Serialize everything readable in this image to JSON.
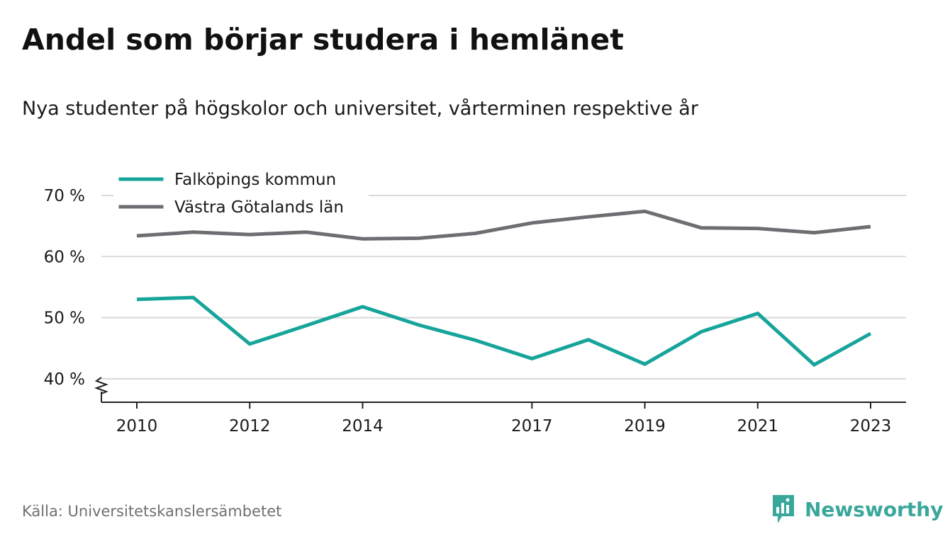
{
  "header": {
    "title": "Andel som börjar studera i hemlänet",
    "subtitle": "Nya studenter på högskolor och universitet, vårterminen respektive år"
  },
  "footer": {
    "source": "Källa: Universitetskanslersämbetet",
    "brand": "Newsworthy",
    "brand_icon": "bar-chart-speech-bubble-icon"
  },
  "colors": {
    "series_1": "#16a49b",
    "series_2": "#6e6d72",
    "grid": "#d9d9d9",
    "axis": "#222222",
    "brand": "#3aa79b"
  },
  "chart_data": {
    "type": "line",
    "title": "Andel som börjar studera i hemlänet",
    "subtitle": "Nya studenter på högskolor och universitet, vårterminen respektive år",
    "x": [
      2010,
      2011,
      2012,
      2013,
      2014,
      2015,
      2016,
      2017,
      2018,
      2019,
      2020,
      2021,
      2022,
      2023
    ],
    "x_ticks": [
      "2010",
      "2012",
      "2014",
      "2017",
      "2019",
      "2021",
      "2023"
    ],
    "x_tick_values": [
      2010,
      2012,
      2014,
      2017,
      2019,
      2021,
      2023
    ],
    "y_ticks": [
      "40 %",
      "50 %",
      "60 %",
      "70 %"
    ],
    "y_tick_values": [
      40,
      50,
      60,
      70
    ],
    "ylim": [
      36,
      70
    ],
    "y_axis_break": true,
    "grid": true,
    "legend_position": "top-left",
    "series": [
      {
        "name": "Falköpings kommun",
        "values": [
          53.0,
          53.3,
          45.7,
          48.7,
          51.8,
          48.8,
          46.3,
          43.3,
          46.4,
          42.4,
          47.7,
          50.7,
          42.3,
          47.4
        ]
      },
      {
        "name": "Västra Götalands län",
        "values": [
          63.4,
          64.0,
          63.6,
          64.0,
          62.9,
          63.0,
          63.8,
          65.5,
          66.5,
          67.4,
          64.7,
          64.6,
          63.9,
          64.9
        ]
      }
    ]
  }
}
